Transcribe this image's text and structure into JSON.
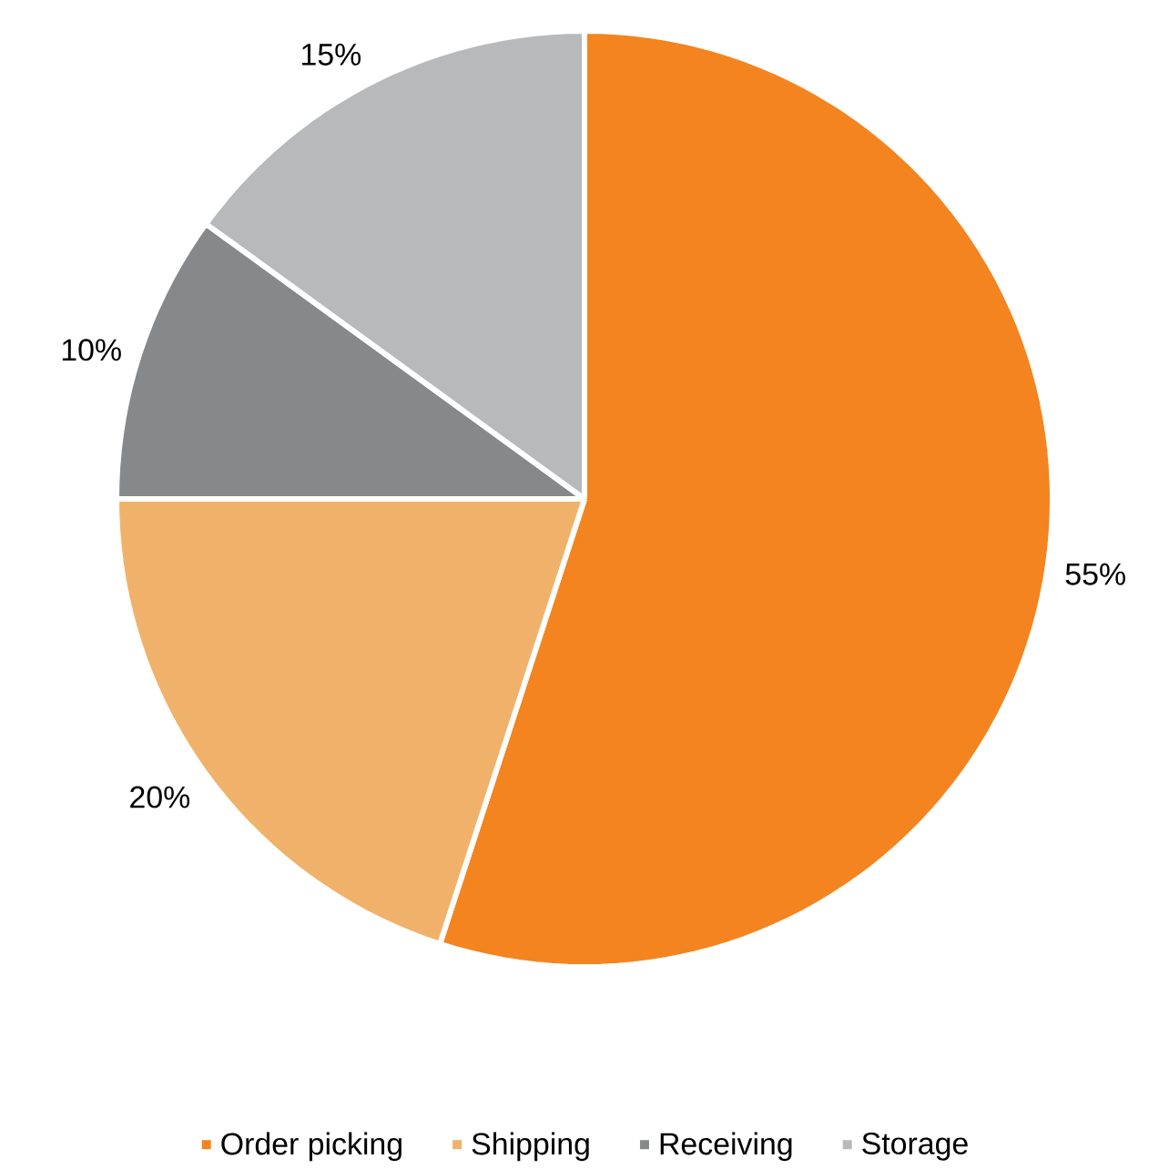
{
  "chart_data": {
    "type": "pie",
    "categories": [
      "Order picking",
      "Shipping",
      "Receiving",
      "Storage"
    ],
    "values": [
      55,
      20,
      10,
      15
    ],
    "value_labels": [
      "55%",
      "20%",
      "10%",
      "15%"
    ],
    "colors": [
      "#f4841f",
      "#f0b26a",
      "#86888a",
      "#b8b9bb"
    ],
    "legend": "bottom"
  }
}
